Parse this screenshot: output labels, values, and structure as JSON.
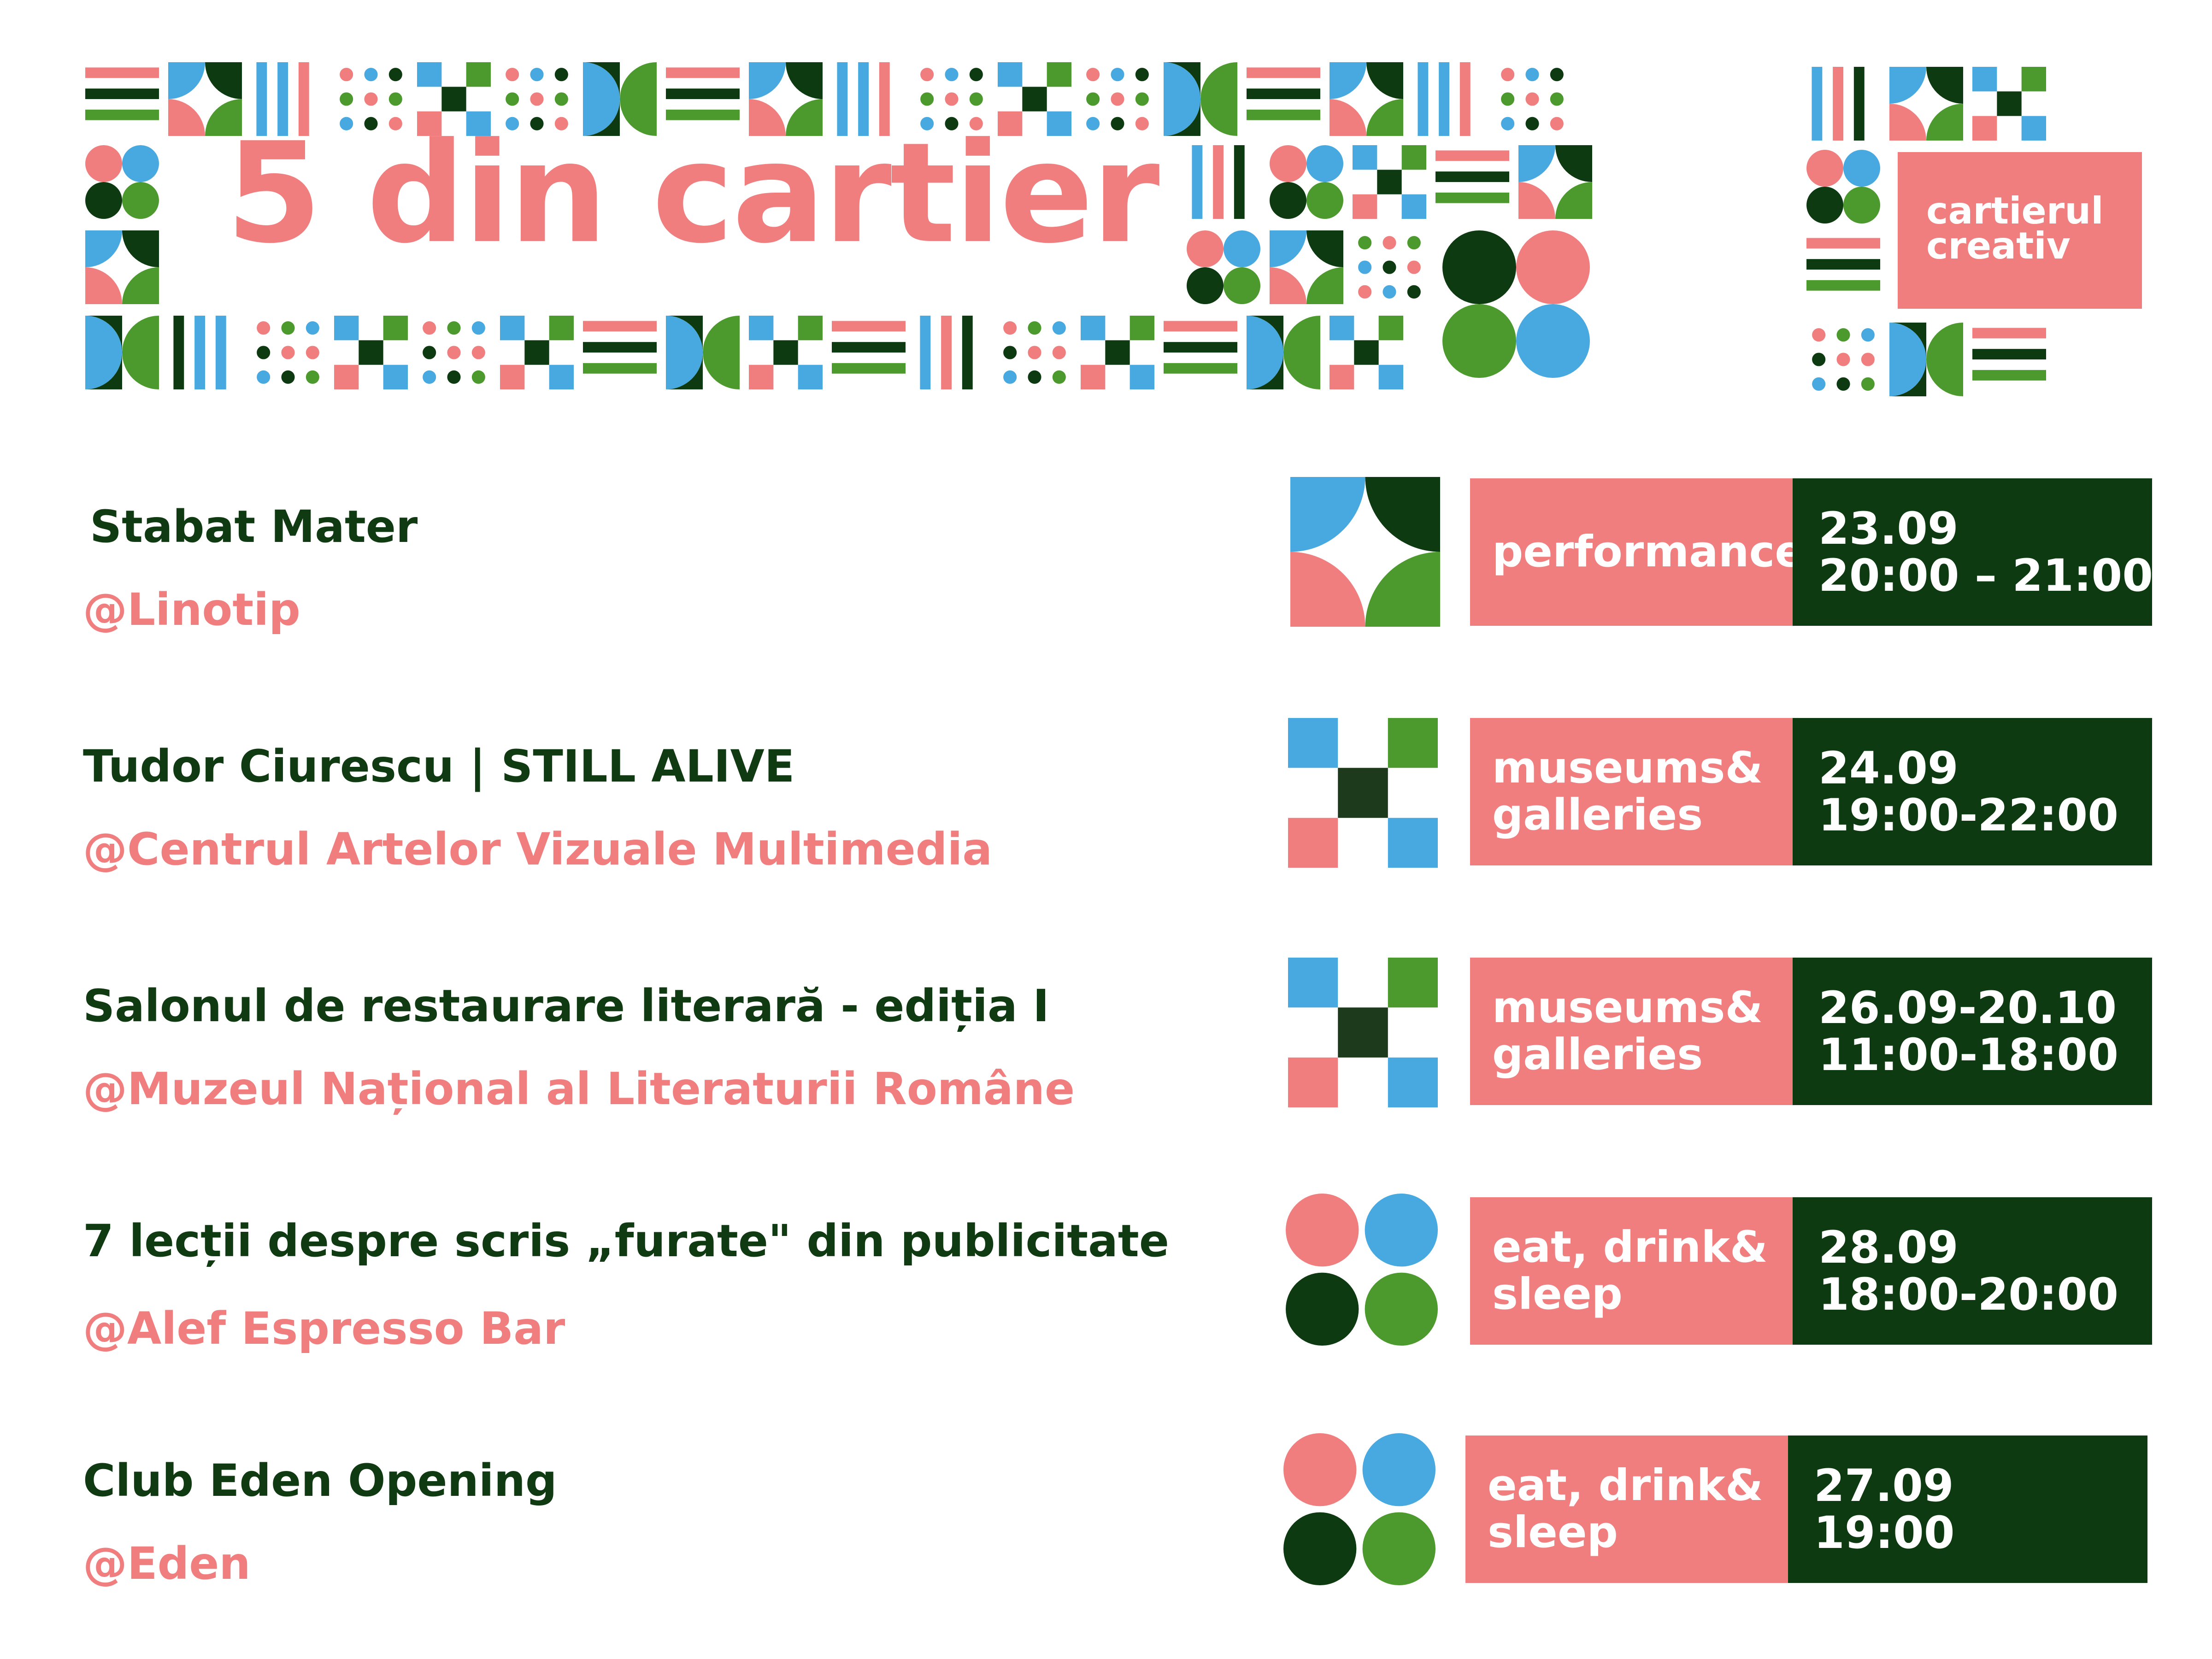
{
  "header": {
    "title": "5 din cartier",
    "logo_line_1": "cartierul",
    "logo_line_2": "creativ"
  },
  "colors": {
    "pink": "#f07e7e",
    "dark_green": "#0d3a10",
    "green": "#4c9a2e",
    "blue": "#47a9e0"
  },
  "events": [
    {
      "title": "Stabat Mater",
      "venue": "@Linotip",
      "icon": "quarter-circles-icon",
      "category_lines": [
        "performance"
      ],
      "date": "23.09",
      "time": "20:00 – 21:00"
    },
    {
      "title": "Tudor Ciurescu | STILL ALIVE",
      "venue": "@Centrul Artelor Vizuale Multimedia",
      "icon": "checker-squares-icon",
      "category_lines": [
        "museums&",
        "galleries"
      ],
      "date": "24.09",
      "time": "19:00-22:00"
    },
    {
      "title": "Salonul de restaurare literară - ediția I",
      "venue": "@Muzeul Național al Literaturii Române",
      "icon": "checker-squares-icon",
      "category_lines": [
        "museums&",
        "galleries"
      ],
      "date": "26.09-20.10",
      "time": "11:00-18:00"
    },
    {
      "title": "7 lecții despre scris „furate\" din publicitate",
      "venue": "@Alef Espresso Bar",
      "icon": "four-circles-icon",
      "category_lines": [
        "eat, drink&",
        "sleep"
      ],
      "date": "28.09",
      "time": "18:00-20:00"
    },
    {
      "title": "Club Eden Opening",
      "venue": "@Eden",
      "icon": "four-circles-icon",
      "category_lines": [
        "eat, drink&",
        "sleep"
      ],
      "date": "27.09",
      "time": "19:00"
    }
  ]
}
